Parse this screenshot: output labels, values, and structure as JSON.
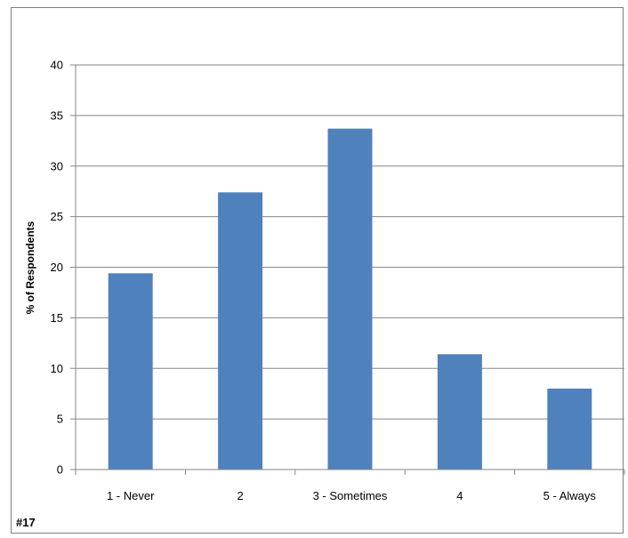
{
  "figure_tag": "#17",
  "chart_data": {
    "type": "bar",
    "categories": [
      "1 - Never",
      "2",
      "3 - Sometimes",
      "4",
      "5 - Always"
    ],
    "values": [
      19.4,
      27.4,
      33.7,
      11.4,
      8.0
    ],
    "title": "",
    "xlabel": "",
    "ylabel": "% of Respondents",
    "ylim": [
      0,
      40
    ],
    "yticks": [
      0,
      5,
      10,
      15,
      20,
      25,
      30,
      35,
      40
    ],
    "grid": true,
    "legend": "none",
    "colors": {
      "bar": "#4f81bd",
      "grid": "#868686",
      "axis": "#868686"
    }
  }
}
